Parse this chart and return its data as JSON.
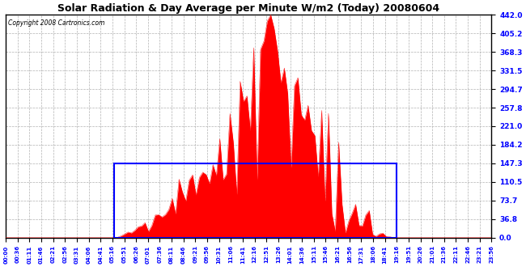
{
  "title": "Solar Radiation & Day Average per Minute W/m2 (Today) 20080604",
  "copyright": "Copyright 2008 Cartronics.com",
  "bg_color": "#ffffff",
  "plot_bg_color": "#ffffff",
  "grid_color": "#aaaaaa",
  "bar_color": "#ff0000",
  "line_color": "#0000ff",
  "ymax": 442.0,
  "yticks": [
    0.0,
    36.8,
    73.7,
    110.5,
    147.3,
    184.2,
    221.0,
    257.8,
    294.7,
    331.5,
    368.3,
    405.2,
    442.0
  ],
  "day_avg": 147.3,
  "sunrise_idx": 32,
  "sunset_idx": 115,
  "num_points": 144,
  "x_label_times": [
    "00:00",
    "00:36",
    "01:11",
    "01:46",
    "02:21",
    "02:56",
    "03:31",
    "04:06",
    "04:41",
    "05:16",
    "05:51",
    "06:26",
    "07:01",
    "07:36",
    "08:11",
    "08:46",
    "09:21",
    "09:56",
    "10:31",
    "11:06",
    "11:41",
    "12:16",
    "12:51",
    "13:26",
    "14:01",
    "14:36",
    "15:11",
    "15:46",
    "16:21",
    "16:56",
    "17:31",
    "18:06",
    "18:41",
    "19:16",
    "19:51",
    "20:26",
    "21:01",
    "21:36",
    "22:11",
    "22:46",
    "23:21",
    "23:56"
  ]
}
